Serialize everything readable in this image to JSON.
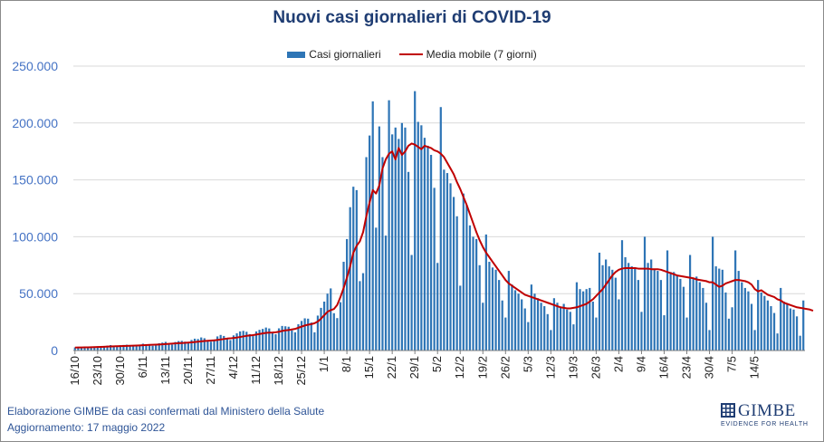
{
  "chart_data": {
    "type": "bar",
    "title": "Nuovi casi giornalieri di COVID-19",
    "legend": [
      "Casi giornalieri",
      "Media mobile (7 giorni)"
    ],
    "legend_position": "top",
    "ylim": [
      0,
      250000
    ],
    "y_ticks": [
      "0",
      "50.000",
      "100.000",
      "150.000",
      "200.000",
      "250.000"
    ],
    "grid": true,
    "x_tick_labels": [
      "16/10",
      "23/10",
      "30/10",
      "6/11",
      "13/11",
      "20/11",
      "27/11",
      "4/12",
      "11/12",
      "18/12",
      "25/12",
      "1/1",
      "8/1",
      "15/1",
      "22/1",
      "29/1",
      "5/2",
      "12/2",
      "19/2",
      "26/2",
      "5/3",
      "12/3",
      "19/3",
      "26/3",
      "2/4",
      "9/4",
      "16/4",
      "23/4",
      "30/4",
      "7/5",
      "14/5"
    ],
    "x_start": "16/10",
    "x_end": "17/5",
    "series": [
      {
        "name": "Casi giornalieri",
        "type": "bar",
        "color": "#2e75b6",
        "values": [
          2700,
          2500,
          3000,
          3300,
          3100,
          2600,
          3500,
          3700,
          3400,
          4000,
          4200,
          4800,
          3800,
          3200,
          4600,
          4900,
          5100,
          4300,
          3900,
          4100,
          5200,
          6000,
          5600,
          4700,
          4200,
          5500,
          6400,
          7000,
          7600,
          6300,
          5200,
          7500,
          8300,
          8500,
          7800,
          6400,
          9300,
          10400,
          10100,
          11500,
          10800,
          8000,
          7800,
          9600,
          12400,
          13700,
          12800,
          10900,
          9200,
          13300,
          15100,
          16800,
          17300,
          16500,
          14400,
          12700,
          16800,
          18200,
          19000,
          20200,
          19400,
          15500,
          14300,
          19500,
          21600,
          21300,
          20900,
          17600,
          16000,
          23100,
          26000,
          28300,
          28000,
          24600,
          16000,
          30700,
          37500,
          43000,
          50000,
          54600,
          32800,
          28500,
          42500,
          78000,
          98000,
          126000,
          144000,
          141000,
          61000,
          68000,
          170000,
          189000,
          219000,
          108000,
          197000,
          170000,
          101000,
          220000,
          190000,
          196000,
          186000,
          200000,
          196000,
          157000,
          84000,
          228000,
          201000,
          198000,
          187000,
          180000,
          172000,
          143000,
          77000,
          214000,
          159000,
          156000,
          147000,
          135000,
          118000,
          57000,
          138000,
          128000,
          110000,
          100000,
          98000,
          75000,
          42000,
          102000,
          78000,
          73000,
          71000,
          62000,
          44000,
          29000,
          70000,
          58000,
          53000,
          50000,
          45000,
          37000,
          25000,
          58000,
          50000,
          46000,
          42000,
          39000,
          32000,
          18000,
          46000,
          42000,
          38000,
          41000,
          36000,
          34000,
          23000,
          60000,
          54000,
          52000,
          54000,
          55000,
          43000,
          29000,
          86000,
          75000,
          80000,
          74000,
          71000,
          64000,
          45000,
          97000,
          82000,
          77000,
          74000,
          73000,
          62000,
          34000,
          100000,
          77000,
          80000,
          72000,
          70000,
          62000,
          31000,
          88000,
          69000,
          69000,
          66000,
          63000,
          56000,
          29000,
          84000,
          64000,
          65000,
          60000,
          55000,
          42000,
          18000,
          100000,
          74000,
          72000,
          71000,
          51000,
          28000,
          38000,
          88000,
          70000,
          60000,
          55000,
          52000,
          41000,
          18000,
          62000,
          51000,
          48000,
          44000,
          39000,
          33000,
          15000,
          55000,
          43000,
          41000,
          37000,
          36000,
          30000,
          13000,
          44000
        ]
      },
      {
        "name": "Media mobile (7 giorni)",
        "type": "line",
        "color": "#c00000",
        "values": [
          2600,
          2650,
          2700,
          2750,
          2800,
          2900,
          3000,
          3100,
          3200,
          3300,
          3450,
          3600,
          3700,
          3800,
          3900,
          4000,
          4100,
          4150,
          4250,
          4350,
          4500,
          4650,
          4800,
          4950,
          5050,
          5150,
          5300,
          5450,
          5650,
          5850,
          6050,
          6250,
          6450,
          6600,
          6750,
          6950,
          7150,
          7450,
          7750,
          8050,
          8350,
          8550,
          8750,
          8950,
          9300,
          9700,
          10100,
          10500,
          10700,
          11000,
          11400,
          11900,
          12400,
          12900,
          13200,
          13500,
          14000,
          14500,
          15000,
          15500,
          15700,
          15800,
          16000,
          16500,
          17200,
          17700,
          18000,
          18500,
          19000,
          20000,
          21000,
          22000,
          22700,
          23200,
          24000,
          25500,
          28000,
          31000,
          34000,
          35500,
          36500,
          40000,
          47000,
          55000,
          64000,
          74000,
          86000,
          92000,
          96000,
          104000,
          118000,
          130000,
          141000,
          138000,
          145000,
          160000,
          168000,
          173000,
          175000,
          168000,
          178000,
          172000,
          175000,
          180000,
          182000,
          181000,
          179000,
          177000,
          180000,
          179000,
          178000,
          176000,
          175000,
          173000,
          170000,
          165000,
          160000,
          155000,
          148000,
          142000,
          135000,
          128000,
          120000,
          112000,
          104000,
          97000,
          91000,
          86000,
          82000,
          78000,
          74000,
          70000,
          66000,
          62000,
          59000,
          57000,
          55000,
          53000,
          51000,
          49000,
          48000,
          47000,
          46000,
          45000,
          44000,
          43000,
          42000,
          41000,
          40000,
          39000,
          38000,
          37500,
          37000,
          37000,
          37500,
          38000,
          39000,
          40000,
          41000,
          43000,
          45000,
          48000,
          51000,
          54000,
          58000,
          62000,
          66000,
          69000,
          71000,
          72000,
          72500,
          72500,
          72500,
          72500,
          72000,
          72000,
          72000,
          72000,
          71500,
          71500,
          71500,
          71000,
          70000,
          69000,
          68000,
          67000,
          66000,
          65500,
          65000,
          64500,
          64000,
          63500,
          62500,
          62000,
          61500,
          61000,
          60000,
          60000,
          58000,
          56000,
          57000,
          59000,
          60000,
          61000,
          62000,
          62000,
          61500,
          61000,
          60000,
          58000,
          54000,
          52000,
          53000,
          51000,
          49000,
          48000,
          47000,
          45000,
          44000,
          42000,
          41000,
          40000,
          39000,
          38000,
          37500,
          37000,
          36500,
          36000,
          35000
        ]
      }
    ]
  },
  "footer": {
    "source": "Elaborazione GIMBE da casi confermati dal Ministero della Salute",
    "updated": "Aggiornamento: 17 maggio 2022"
  },
  "logo": {
    "name": "GIMBE",
    "tagline": "EVIDENCE FOR HEALTH"
  }
}
